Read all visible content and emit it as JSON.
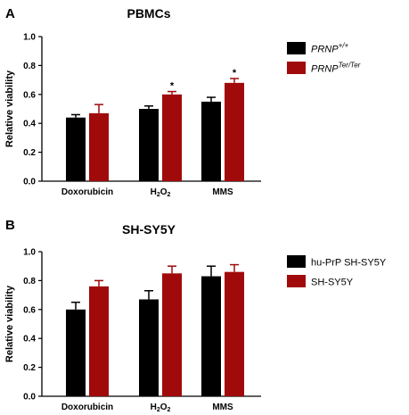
{
  "chart_data": [
    {
      "type": "bar",
      "panel": "A",
      "title": "PBMCs",
      "ylabel": "Relative viability",
      "xlabel": "",
      "ylim": [
        0,
        1.0
      ],
      "yticks": [
        "0.0",
        "0.2",
        "0.4",
        "0.6",
        "0.8",
        "1.0"
      ],
      "categories": [
        "Doxorubicin",
        "H2O2",
        "MMS"
      ],
      "category_labels": [
        {
          "main": "Doxorubicin",
          "sub": ""
        },
        {
          "main": "H",
          "sub": "2",
          "main2": "O",
          "sub2": "2"
        },
        {
          "main": "MMS",
          "sub": ""
        }
      ],
      "series": [
        {
          "name": "PRNP+/+",
          "legend_main": "PRNP",
          "legend_sup": "+/+",
          "color": "#000000",
          "values": [
            0.44,
            0.5,
            0.55
          ],
          "errors": [
            0.02,
            0.02,
            0.03
          ],
          "significance": [
            "",
            "",
            ""
          ]
        },
        {
          "name": "PRNPTer/Ter",
          "legend_main": "PRNP",
          "legend_sup": "Ter/Ter",
          "color": "#a10a0a",
          "values": [
            0.47,
            0.6,
            0.68
          ],
          "errors": [
            0.06,
            0.02,
            0.03
          ],
          "significance": [
            "",
            "*",
            "*"
          ]
        }
      ],
      "legend_italic": true
    },
    {
      "type": "bar",
      "panel": "B",
      "title": "SH-SY5Y",
      "ylabel": "Relative viability",
      "xlabel": "",
      "ylim": [
        0,
        1.0
      ],
      "yticks": [
        "0.0",
        "0.2",
        "0.4",
        "0.6",
        "0.8",
        "1.0"
      ],
      "categories": [
        "Doxorubicin",
        "H2O2",
        "MMS"
      ],
      "category_labels": [
        {
          "main": "Doxorubicin",
          "sub": ""
        },
        {
          "main": "H",
          "sub": "2",
          "main2": "O",
          "sub2": "2"
        },
        {
          "main": "MMS",
          "sub": ""
        }
      ],
      "series": [
        {
          "name": "hu-PrP SH-SY5Y",
          "legend_main": "hu-PrP SH-SY5Y",
          "legend_sup": "",
          "color": "#000000",
          "values": [
            0.6,
            0.67,
            0.83
          ],
          "errors": [
            0.05,
            0.06,
            0.07
          ],
          "significance": [
            "",
            "",
            ""
          ]
        },
        {
          "name": "SH-SY5Y",
          "legend_main": "SH-SY5Y",
          "legend_sup": "",
          "color": "#a10a0a",
          "values": [
            0.76,
            0.85,
            0.86
          ],
          "errors": [
            0.04,
            0.05,
            0.05
          ],
          "significance": [
            "",
            "",
            ""
          ]
        }
      ],
      "legend_italic": false
    }
  ]
}
